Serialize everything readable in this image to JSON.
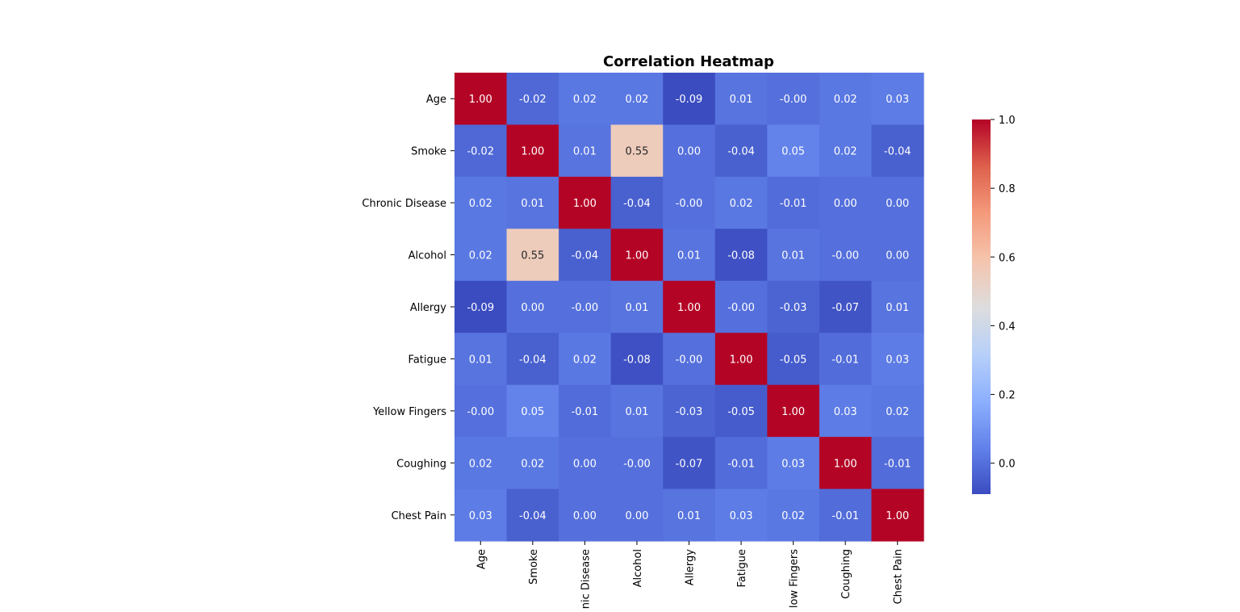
{
  "chart_data": {
    "type": "heatmap",
    "title": "Correlation Heatmap",
    "xlabel": "",
    "ylabel": "",
    "row_labels": [
      "Age",
      "Smoke",
      "Chronic Disease",
      "Alcohol",
      "Allergy",
      "Fatigue",
      "Yellow Fingers",
      "Coughing",
      "Chest Pain"
    ],
    "col_labels": [
      "Age",
      "Smoke",
      "Chronic Disease",
      "Alcohol",
      "Allergy",
      "Fatigue",
      "Yellow Fingers",
      "Coughing",
      "Chest Pain"
    ],
    "values": [
      [
        1.0,
        -0.02,
        0.02,
        0.02,
        -0.09,
        0.01,
        -0.0,
        0.02,
        0.03
      ],
      [
        -0.02,
        1.0,
        0.01,
        0.55,
        0.0,
        -0.04,
        0.05,
        0.02,
        -0.04
      ],
      [
        0.02,
        0.01,
        1.0,
        -0.04,
        -0.0,
        0.02,
        -0.01,
        0.0,
        0.0
      ],
      [
        0.02,
        0.55,
        -0.04,
        1.0,
        0.01,
        -0.08,
        0.01,
        -0.0,
        0.0
      ],
      [
        -0.09,
        0.0,
        -0.0,
        0.01,
        1.0,
        -0.0,
        -0.03,
        -0.07,
        0.01
      ],
      [
        0.01,
        -0.04,
        0.02,
        -0.08,
        -0.0,
        1.0,
        -0.05,
        -0.01,
        0.03
      ],
      [
        -0.0,
        0.05,
        -0.01,
        0.01,
        -0.03,
        -0.05,
        1.0,
        0.03,
        0.02
      ],
      [
        0.02,
        0.02,
        0.0,
        -0.0,
        -0.07,
        -0.01,
        0.03,
        1.0,
        -0.01
      ],
      [
        0.03,
        -0.04,
        0.0,
        0.0,
        0.01,
        0.03,
        0.02,
        -0.01,
        1.0
      ]
    ],
    "cell_labels": [
      [
        "1.00",
        "-0.02",
        "0.02",
        "0.02",
        "-0.09",
        "0.01",
        "-0.00",
        "0.02",
        "0.03"
      ],
      [
        "-0.02",
        "1.00",
        "0.01",
        "0.55",
        "0.00",
        "-0.04",
        "0.05",
        "0.02",
        "-0.04"
      ],
      [
        "0.02",
        "0.01",
        "1.00",
        "-0.04",
        "-0.00",
        "0.02",
        "-0.01",
        "0.00",
        "0.00"
      ],
      [
        "0.02",
        "0.55",
        "-0.04",
        "1.00",
        "0.01",
        "-0.08",
        "0.01",
        "-0.00",
        "0.00"
      ],
      [
        "-0.09",
        "0.00",
        "-0.00",
        "0.01",
        "1.00",
        "-0.00",
        "-0.03",
        "-0.07",
        "0.01"
      ],
      [
        "0.01",
        "-0.04",
        "0.02",
        "-0.08",
        "-0.00",
        "1.00",
        "-0.05",
        "-0.01",
        "0.03"
      ],
      [
        "-0.00",
        "0.05",
        "-0.01",
        "0.01",
        "-0.03",
        "-0.05",
        "1.00",
        "0.03",
        "0.02"
      ],
      [
        "0.02",
        "0.02",
        "0.00",
        "-0.00",
        "-0.07",
        "-0.01",
        "0.03",
        "1.00",
        "-0.01"
      ],
      [
        "0.03",
        "-0.04",
        "0.00",
        "0.00",
        "0.01",
        "0.03",
        "0.02",
        "-0.01",
        "1.00"
      ]
    ],
    "colormap": "coolwarm",
    "vmin": -0.09,
    "vmax": 1.0,
    "colorbar": {
      "ticks": [
        0.0,
        0.2,
        0.4,
        0.6,
        0.8,
        1.0
      ],
      "tick_labels": [
        "0.0",
        "0.2",
        "0.4",
        "0.6",
        "0.8",
        "1.0"
      ]
    },
    "annotations": true,
    "grid": false,
    "legend": "colorbar-right"
  }
}
